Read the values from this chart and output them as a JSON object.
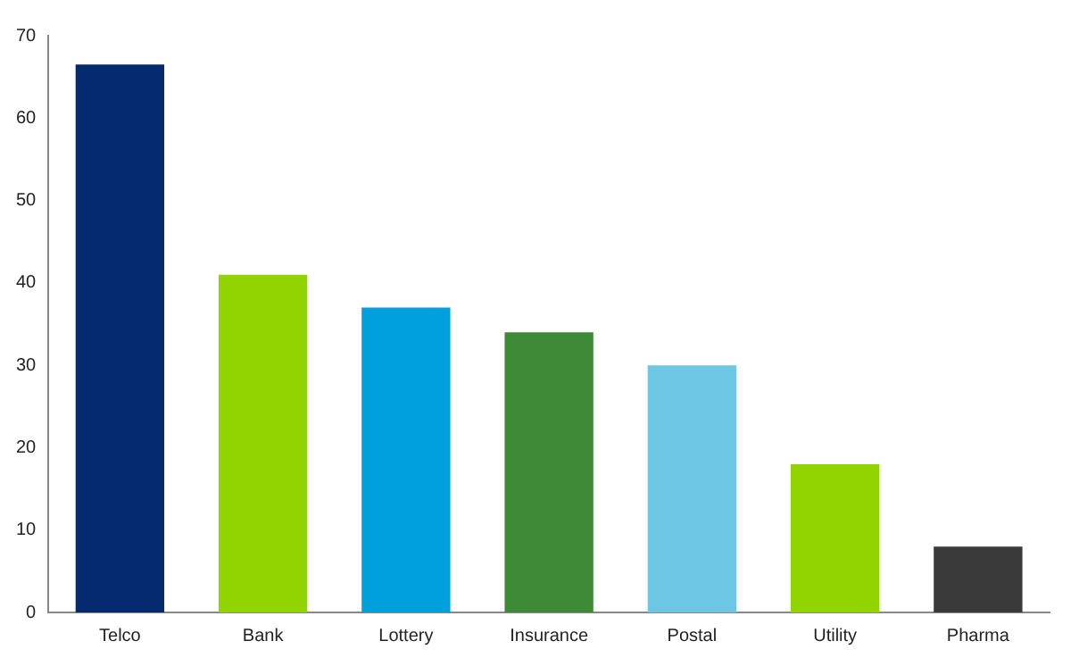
{
  "chart_data": {
    "type": "bar",
    "categories": [
      "Telco",
      "Bank",
      "Lottery",
      "Insurance",
      "Postal",
      "Utility",
      "Pharma"
    ],
    "values": [
      66.5,
      41,
      37,
      34,
      30,
      18,
      8
    ],
    "colors": [
      "#062a6e",
      "#92d400",
      "#00a0dc",
      "#3c8a36",
      "#6cc6e4",
      "#92d400",
      "#3a3a3a"
    ],
    "ylim": [
      0,
      70
    ],
    "yticks": [
      0,
      10,
      20,
      30,
      40,
      50,
      60,
      70
    ],
    "grid": false,
    "legend": false
  }
}
